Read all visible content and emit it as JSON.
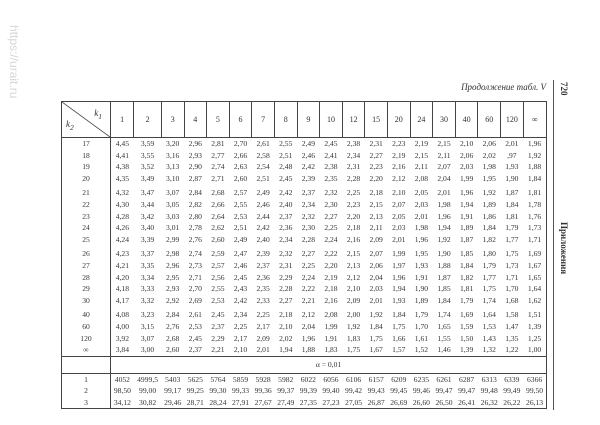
{
  "watermark": "https://urait.ru",
  "caption": "Продолжение табл. V",
  "page_number": "720",
  "section_title": "Приложения",
  "header": {
    "k1_label": "k1",
    "k2_label": "k2",
    "columns": [
      "1",
      "2",
      "3",
      "4",
      "5",
      "6",
      "7",
      "8",
      "9",
      "10",
      "12",
      "15",
      "20",
      "24",
      "30",
      "40",
      "60",
      "120",
      "∞"
    ]
  },
  "groups_005": [
    [
      {
        "k2": "17",
        "values": [
          "4,45",
          "3,59",
          "3,20",
          "2,96",
          "2,81",
          "2,70",
          "2,61",
          "2,55",
          "2,49",
          "2,45",
          "2,38",
          "2,31",
          "2,23",
          "2,19",
          "2,15",
          "2,10",
          "2,06",
          "2,01",
          "1,96"
        ]
      },
      {
        "k2": "18",
        "values": [
          "4,41",
          "3,55",
          "3,16",
          "2,93",
          "2,77",
          "2,66",
          "2,58",
          "2,51",
          "2,46",
          "2,41",
          "2,34",
          "2,27",
          "2,19",
          "2,15",
          "2,11",
          "2,06",
          "2,02",
          ",97",
          "1,92"
        ]
      },
      {
        "k2": "19",
        "values": [
          "4,38",
          "3,52",
          "3,13",
          "2,90",
          "2,74",
          "2,63",
          "2,54",
          "2,48",
          "2,42",
          "2,38",
          "2,31",
          "2,23",
          "2,16",
          "2,11",
          "2,07",
          "2,03",
          "1,98",
          "1,93",
          "1,88"
        ]
      },
      {
        "k2": "20",
        "values": [
          "4,35",
          "3,49",
          "3,10",
          "2,87",
          "2,71",
          "2,60",
          "2,51",
          "2,45",
          "2,39",
          "2,35",
          "2,28",
          "2,20",
          "2,12",
          "2,08",
          "2,04",
          "1,99",
          "1,95",
          "1,90",
          "1,84"
        ]
      }
    ],
    [
      {
        "k2": "21",
        "values": [
          "4,32",
          "3,47",
          "3,07",
          "2,84",
          "2,68",
          "2,57",
          "2,49",
          "2,42",
          "2,37",
          "2,32",
          "2,25",
          "2,18",
          "2,10",
          "2,05",
          "2,01",
          "1,96",
          "1,92",
          "1,87",
          "1,81"
        ]
      },
      {
        "k2": "22",
        "values": [
          "4,30",
          "3,44",
          "3,05",
          "2,82",
          "2,66",
          "2,55",
          "2,46",
          "2,40",
          "2,34",
          "2,30",
          "2,23",
          "2,15",
          "2,07",
          "2,03",
          "1,98",
          "1,94",
          "1,89",
          "1,84",
          "1,78"
        ]
      },
      {
        "k2": "23",
        "values": [
          "4,28",
          "3,42",
          "3,03",
          "2,80",
          "2,64",
          "2,53",
          "2,44",
          "2,37",
          "2,32",
          "2,27",
          "2,20",
          "2,13",
          "2,05",
          "2,01",
          "1,96",
          "1,91",
          "1,86",
          "1,81",
          "1,76"
        ]
      },
      {
        "k2": "24",
        "values": [
          "4,26",
          "3,40",
          "3,01",
          "2,78",
          "2,62",
          "2,51",
          "2,42",
          "2,36",
          "2,30",
          "2,25",
          "2,18",
          "2,11",
          "2,03",
          "1,98",
          "1,94",
          "1,89",
          "1,84",
          "1,79",
          "1,73"
        ]
      },
      {
        "k2": "25",
        "values": [
          "4,24",
          "3,39",
          "2,99",
          "2,76",
          "2,60",
          "2,49",
          "2,40",
          "2,34",
          "2,28",
          "2,24",
          "2,16",
          "2,09",
          "2,01",
          "1,96",
          "1,92",
          "1,87",
          "1,82",
          "1,77",
          "1,71"
        ]
      }
    ],
    [
      {
        "k2": "26",
        "values": [
          "4,23",
          "3,37",
          "2,98",
          "2,74",
          "2,59",
          "2,47",
          "2,39",
          "2,32",
          "2,27",
          "2,22",
          "2,15",
          "2,07",
          "1,99",
          "1,95",
          "1,90",
          "1,85",
          "1,80",
          "1,75",
          "1,69"
        ]
      },
      {
        "k2": "27",
        "values": [
          "4,21",
          "3,35",
          "2,96",
          "2,73",
          "2,57",
          "2,46",
          "2,37",
          "2,31",
          "2,25",
          "2,20",
          "2,13",
          "2,06",
          "1,97",
          "1,93",
          "1,88",
          "1,84",
          "1,79",
          "1,73",
          "1,67"
        ]
      },
      {
        "k2": "28",
        "values": [
          "4,20",
          "3,34",
          "2,95",
          "2,71",
          "2,56",
          "2,45",
          "2,36",
          "2,29",
          "2,24",
          "2,19",
          "2,12",
          "2,04",
          "1,96",
          "1,91",
          "1,87",
          "1,82",
          "1,77",
          "1,71",
          "1,65"
        ]
      },
      {
        "k2": "29",
        "values": [
          "4,18",
          "3,33",
          "2,93",
          "2,70",
          "2,55",
          "2,43",
          "2,35",
          "2,28",
          "2,22",
          "2,18",
          "2,10",
          "2,03",
          "1,94",
          "1,90",
          "1,85",
          "1,81",
          "1,75",
          "1,70",
          "1,64"
        ]
      },
      {
        "k2": "30",
        "values": [
          "4,17",
          "3,32",
          "2,92",
          "2,69",
          "2,53",
          "2,42",
          "2,33",
          "2,27",
          "2,21",
          "2,16",
          "2,09",
          "2,01",
          "1,93",
          "1,89",
          "1,84",
          "1,79",
          "1,74",
          "1,68",
          "1,62"
        ]
      }
    ],
    [
      {
        "k2": "40",
        "values": [
          "4,08",
          "3,23",
          "2,84",
          "2,61",
          "2,45",
          "2,34",
          "2,25",
          "2,18",
          "2,12",
          "2,08",
          "2,00",
          "1,92",
          "1,84",
          "1,79",
          "1,74",
          "1,69",
          "1,64",
          "1,58",
          "1,51"
        ]
      },
      {
        "k2": "60",
        "values": [
          "4,00",
          "3,15",
          "2,76",
          "2,53",
          "2,37",
          "2,25",
          "2,17",
          "2,10",
          "2,04",
          "1,99",
          "1,92",
          "1,84",
          "1,75",
          "1,70",
          "1,65",
          "1,59",
          "1,53",
          "1,47",
          "1,39"
        ]
      },
      {
        "k2": "120",
        "values": [
          "3,92",
          "3,07",
          "2,68",
          "2,45",
          "2,29",
          "2,17",
          "2,09",
          "2,02",
          "1,96",
          "1,91",
          "1,83",
          "1,75",
          "1,66",
          "1,61",
          "1,55",
          "1,50",
          "1,43",
          "1,35",
          "1,25"
        ]
      },
      {
        "k2": "∞",
        "values": [
          "3,84",
          "3,00",
          "2,60",
          "2,37",
          "2,21",
          "2,10",
          "2,01",
          "1,94",
          "1,88",
          "1,83",
          "1,75",
          "1,67",
          "1,57",
          "1,52",
          "1,46",
          "1,39",
          "1,32",
          "1,22",
          "1,00"
        ]
      }
    ]
  ],
  "alpha_label": "α = 0,01",
  "rows_001": [
    {
      "k2": "1",
      "values": [
        "4052",
        "4999,5",
        "5403",
        "5625",
        "5764",
        "5859",
        "5928",
        "5982",
        "6022",
        "6056",
        "6106",
        "6157",
        "6209",
        "6235",
        "6261",
        "6287",
        "6313",
        "6339",
        "6366"
      ]
    },
    {
      "k2": "2",
      "values": [
        "98,50",
        "99,00",
        "99,17",
        "99,25",
        "99,30",
        "99,33",
        "99,36",
        "99,37",
        "99,39",
        "99,40",
        "99,42",
        "99,43",
        "99,45",
        "99,46",
        "99,47",
        "99,47",
        "99,48",
        "99,49",
        "99,50"
      ]
    },
    {
      "k2": "3",
      "values": [
        "34,12",
        "30,82",
        "29,46",
        "28,71",
        "28,24",
        "27,91",
        "27,67",
        "27,49",
        "27,35",
        "27,23",
        "27,05",
        "26,87",
        "26,69",
        "26,60",
        "26,50",
        "26,41",
        "26,32",
        "26,22",
        "26,13"
      ]
    }
  ]
}
